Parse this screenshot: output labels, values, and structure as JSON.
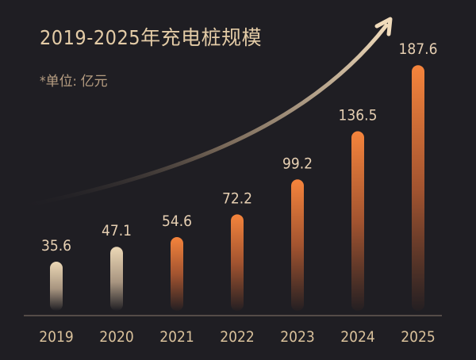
{
  "chart_data": {
    "type": "bar",
    "title": "2019-2025年充电桩规模",
    "subtitle": "*单位: 亿元",
    "categories": [
      "2019",
      "2020",
      "2021",
      "2022",
      "2023",
      "2024",
      "2025"
    ],
    "values": [
      35.6,
      47.1,
      54.6,
      72.2,
      99.2,
      136.5,
      187.6
    ],
    "ylim": [
      0,
      190
    ],
    "grid": false,
    "colors": {
      "background": "#1f1e23",
      "early_bars": "#e8d3b0",
      "later_bars": "#f07f3a",
      "text": "#e3cba6",
      "axis": "#8a7a6e"
    },
    "annotation": "upward-trend-arrow"
  }
}
